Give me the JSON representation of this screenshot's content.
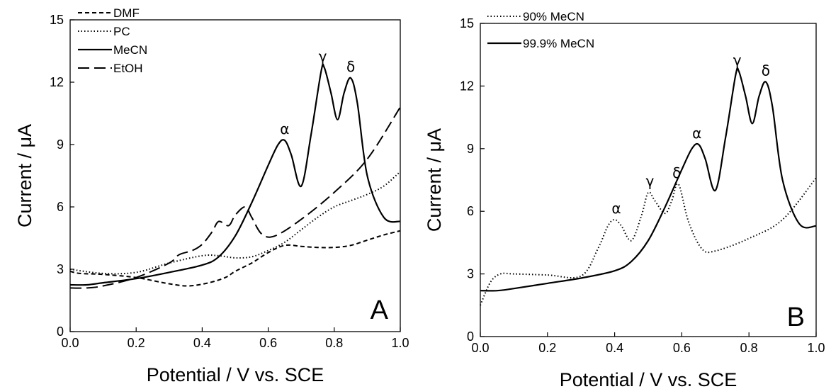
{
  "chart_data": [
    {
      "type": "line",
      "panel_label": "A",
      "xlabel": "Potential / V vs. SCE",
      "ylabel": "Current / μA",
      "xlim": [
        0.0,
        1.0
      ],
      "ylim": [
        0,
        15
      ],
      "xticks": [
        "0.0",
        "0.2",
        "0.4",
        "0.6",
        "0.8",
        "1.0"
      ],
      "yticks": [
        "0",
        "3",
        "6",
        "9",
        "12",
        "15"
      ],
      "grid": false,
      "legend_position": "top-left",
      "series": [
        {
          "name": "DMF",
          "style": "short-dash",
          "x": [
            0.0,
            0.03,
            0.1,
            0.2,
            0.3,
            0.36,
            0.42,
            0.47,
            0.5,
            0.55,
            0.6,
            0.65,
            0.7,
            0.75,
            0.8,
            0.85,
            0.9,
            0.95,
            1.0
          ],
          "y": [
            2.9,
            2.8,
            2.75,
            2.6,
            2.3,
            2.2,
            2.35,
            2.6,
            2.9,
            3.3,
            3.8,
            4.15,
            4.1,
            4.05,
            4.05,
            4.15,
            4.4,
            4.65,
            4.85
          ]
        },
        {
          "name": "PC",
          "style": "dotted",
          "x": [
            0.0,
            0.1,
            0.2,
            0.3,
            0.4,
            0.45,
            0.5,
            0.55,
            0.6,
            0.65,
            0.7,
            0.75,
            0.8,
            0.85,
            0.9,
            0.95,
            1.0
          ],
          "y": [
            3.0,
            2.8,
            2.85,
            3.3,
            3.65,
            3.65,
            3.55,
            3.6,
            3.9,
            4.3,
            4.9,
            5.5,
            6.0,
            6.3,
            6.6,
            7.0,
            7.7
          ]
        },
        {
          "name": "MeCN",
          "style": "solid",
          "x": [
            0.0,
            0.05,
            0.1,
            0.2,
            0.3,
            0.4,
            0.45,
            0.5,
            0.55,
            0.6,
            0.63,
            0.65,
            0.67,
            0.7,
            0.73,
            0.76,
            0.77,
            0.79,
            0.81,
            0.83,
            0.85,
            0.87,
            0.9,
            0.95,
            1.0
          ],
          "y": [
            2.25,
            2.25,
            2.35,
            2.55,
            2.85,
            3.2,
            3.6,
            4.6,
            6.2,
            8.0,
            9.0,
            9.2,
            8.5,
            7.0,
            9.5,
            12.5,
            12.7,
            11.5,
            10.2,
            11.5,
            12.2,
            11.0,
            7.5,
            5.5,
            5.3
          ]
        },
        {
          "name": "EtOH",
          "style": "long-dash",
          "x": [
            0.0,
            0.05,
            0.1,
            0.2,
            0.3,
            0.33,
            0.37,
            0.4,
            0.43,
            0.45,
            0.48,
            0.5,
            0.53,
            0.55,
            0.58,
            0.62,
            0.7,
            0.8,
            0.9,
            1.0
          ],
          "y": [
            2.1,
            2.1,
            2.2,
            2.6,
            3.3,
            3.7,
            3.9,
            4.2,
            4.8,
            5.3,
            5.1,
            5.6,
            6.0,
            5.5,
            4.7,
            4.6,
            5.4,
            6.7,
            8.3,
            10.8
          ]
        }
      ],
      "annotations": [
        {
          "text": "α",
          "x": 0.65,
          "y": 9.2
        },
        {
          "text": "γ",
          "x": 0.765,
          "y": 12.7
        },
        {
          "text": "δ",
          "x": 0.85,
          "y": 12.2
        }
      ]
    },
    {
      "type": "line",
      "panel_label": "B",
      "xlabel": "Potential / V vs. SCE",
      "ylabel": "Current / μA",
      "xlim": [
        0.0,
        1.0
      ],
      "ylim": [
        0,
        15
      ],
      "xticks": [
        "0.0",
        "0.2",
        "0.4",
        "0.6",
        "0.8",
        "1.0"
      ],
      "yticks": [
        "0",
        "3",
        "6",
        "9",
        "12",
        "15"
      ],
      "grid": false,
      "legend_position": "top-left",
      "series": [
        {
          "name": "90% MeCN",
          "style": "dotted",
          "x": [
            0.0,
            0.03,
            0.06,
            0.1,
            0.2,
            0.3,
            0.35,
            0.38,
            0.4,
            0.42,
            0.45,
            0.48,
            0.5,
            0.52,
            0.55,
            0.57,
            0.59,
            0.62,
            0.66,
            0.7,
            0.8,
            0.9,
            1.0
          ],
          "y": [
            1.5,
            2.6,
            3.0,
            3.0,
            2.95,
            2.9,
            4.2,
            5.3,
            5.6,
            5.3,
            4.6,
            5.8,
            6.9,
            6.5,
            5.9,
            6.5,
            7.3,
            5.5,
            4.2,
            4.1,
            4.7,
            5.6,
            7.6
          ]
        },
        {
          "name": "99.9% MeCN",
          "style": "solid",
          "x": [
            0.0,
            0.05,
            0.1,
            0.2,
            0.3,
            0.4,
            0.45,
            0.5,
            0.55,
            0.6,
            0.63,
            0.65,
            0.67,
            0.7,
            0.73,
            0.76,
            0.77,
            0.79,
            0.81,
            0.83,
            0.85,
            0.87,
            0.9,
            0.95,
            1.0
          ],
          "y": [
            2.2,
            2.2,
            2.3,
            2.55,
            2.8,
            3.15,
            3.6,
            4.6,
            6.2,
            8.0,
            9.0,
            9.2,
            8.5,
            7.0,
            9.5,
            12.5,
            12.7,
            11.5,
            10.2,
            11.5,
            12.2,
            11.0,
            7.5,
            5.4,
            5.3
          ]
        }
      ],
      "annotations": [
        {
          "text": "α",
          "x": 0.405,
          "y": 5.6
        },
        {
          "text": "γ",
          "x": 0.505,
          "y": 6.9
        },
        {
          "text": "δ",
          "x": 0.585,
          "y": 7.3
        },
        {
          "text": "α",
          "x": 0.645,
          "y": 9.2
        },
        {
          "text": "γ",
          "x": 0.765,
          "y": 12.7
        },
        {
          "text": "δ",
          "x": 0.85,
          "y": 12.2
        }
      ]
    }
  ]
}
